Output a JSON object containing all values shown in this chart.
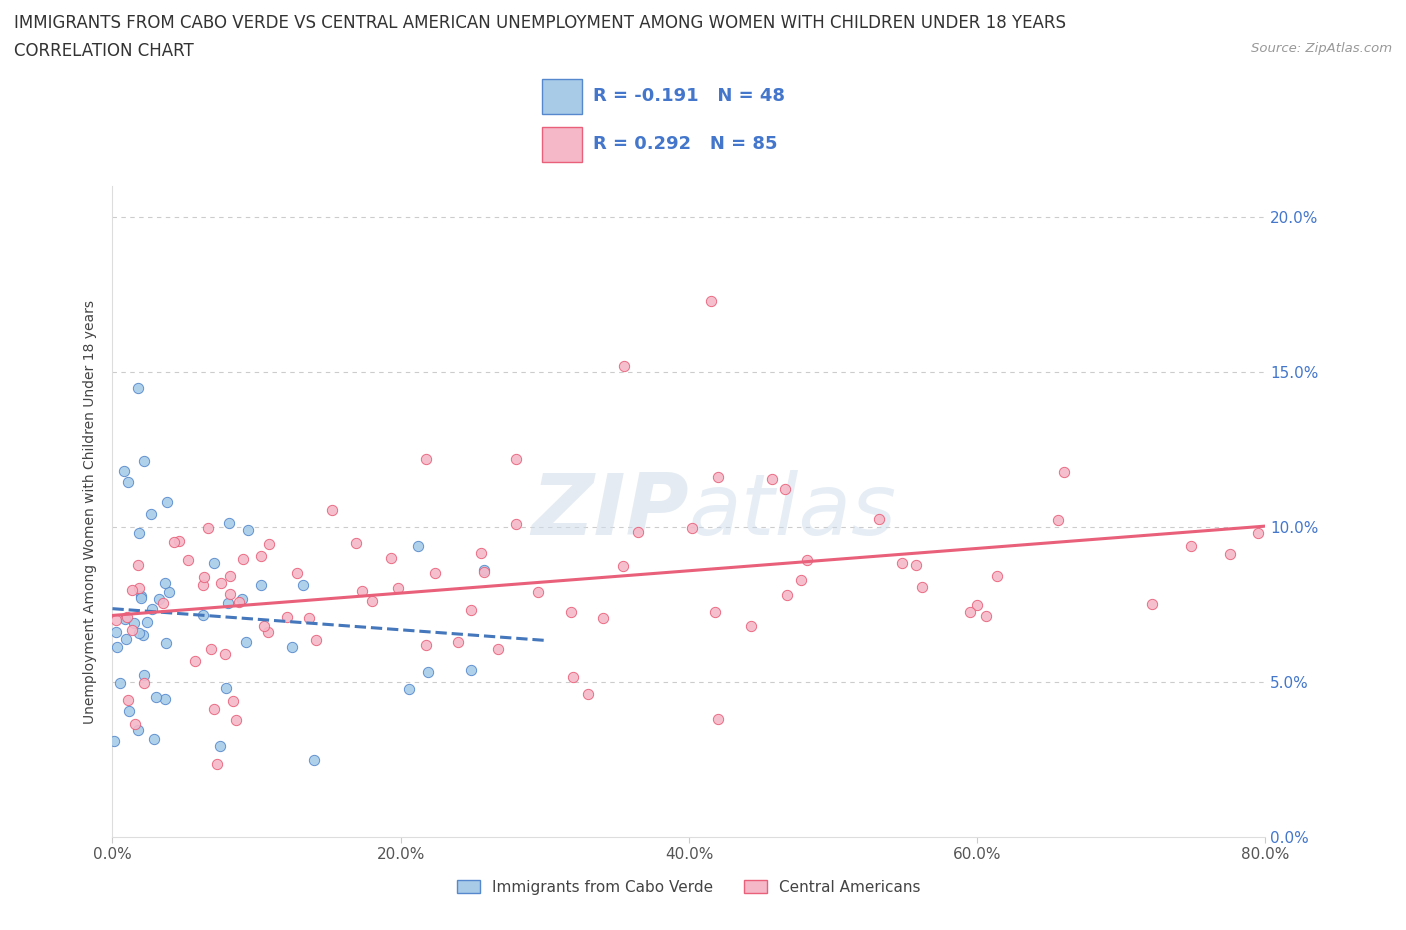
{
  "title_line1": "IMMIGRANTS FROM CABO VERDE VS CENTRAL AMERICAN UNEMPLOYMENT AMONG WOMEN WITH CHILDREN UNDER 18 YEARS",
  "title_line2": "CORRELATION CHART",
  "source": "Source: ZipAtlas.com",
  "ylabel": "Unemployment Among Women with Children Under 18 years",
  "xlim": [
    0.0,
    0.8
  ],
  "ylim": [
    0.0,
    0.21
  ],
  "R_cabo": -0.191,
  "N_cabo": 48,
  "R_central": 0.292,
  "N_central": 85,
  "cabo_fill": "#a8cce8",
  "cabo_edge": "#5588cc",
  "central_fill": "#f5b8c8",
  "central_edge": "#e8607a",
  "cabo_line_color": "#4477bb",
  "central_line_color": "#e8607a",
  "legend_label_cabo": "Immigrants from Cabo Verde",
  "legend_label_central": "Central Americans",
  "watermark_zip": "ZIP",
  "watermark_atlas": "atlas",
  "ytick_color": "#4477cc",
  "title_color": "#333333",
  "source_color": "#999999"
}
